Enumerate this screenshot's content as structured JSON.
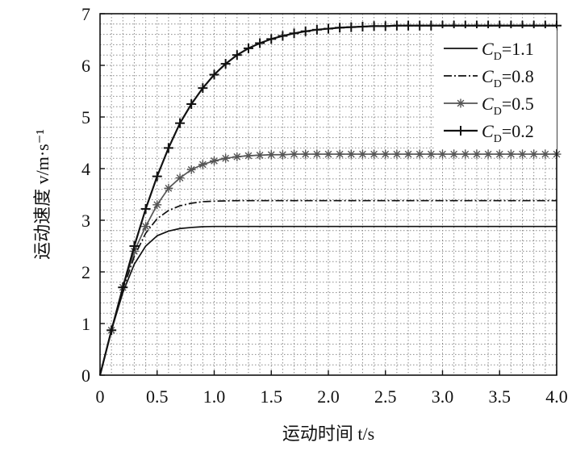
{
  "chart_data": {
    "type": "line",
    "xlabel": "运动时间 t/s",
    "ylabel": "运动速度 v/m·s⁻¹",
    "xlim": [
      0,
      4.0
    ],
    "ylim": [
      0,
      7
    ],
    "x_ticks": [
      "0",
      "0.5",
      "1.0",
      "1.5",
      "2.0",
      "2.5",
      "3.0",
      "3.5",
      "4.0"
    ],
    "y_ticks": [
      "0",
      "1",
      "2",
      "3",
      "4",
      "5",
      "6",
      "7"
    ],
    "grid": true,
    "legend_position": "top-right",
    "series": [
      {
        "name": "C_D=1.1",
        "legend_main": "C",
        "legend_sub": "D",
        "legend_tail": "=1.1",
        "style": "solid",
        "marker": "none",
        "color": "#111111",
        "points": [
          [
            0,
            0
          ],
          [
            0.1,
            0.87
          ],
          [
            0.2,
            1.6
          ],
          [
            0.3,
            2.15
          ],
          [
            0.4,
            2.5
          ],
          [
            0.5,
            2.7
          ],
          [
            0.6,
            2.79
          ],
          [
            0.7,
            2.84
          ],
          [
            0.8,
            2.86
          ],
          [
            0.9,
            2.875
          ],
          [
            1.0,
            2.88
          ],
          [
            1.2,
            2.88
          ],
          [
            1.5,
            2.88
          ],
          [
            2.0,
            2.88
          ],
          [
            2.5,
            2.88
          ],
          [
            3.0,
            2.88
          ],
          [
            3.5,
            2.88
          ],
          [
            4.0,
            2.88
          ]
        ]
      },
      {
        "name": "C_D=0.8",
        "legend_main": "C",
        "legend_sub": "D",
        "legend_tail": "=0.8",
        "style": "dashdot",
        "marker": "none",
        "color": "#111111",
        "points": [
          [
            0,
            0
          ],
          [
            0.1,
            0.87
          ],
          [
            0.2,
            1.65
          ],
          [
            0.3,
            2.3
          ],
          [
            0.4,
            2.75
          ],
          [
            0.5,
            3.03
          ],
          [
            0.6,
            3.19
          ],
          [
            0.7,
            3.28
          ],
          [
            0.8,
            3.33
          ],
          [
            0.9,
            3.36
          ],
          [
            1.0,
            3.37
          ],
          [
            1.2,
            3.38
          ],
          [
            1.5,
            3.38
          ],
          [
            2.0,
            3.38
          ],
          [
            2.5,
            3.38
          ],
          [
            3.0,
            3.38
          ],
          [
            3.5,
            3.38
          ],
          [
            4.0,
            3.38
          ]
        ]
      },
      {
        "name": "C_D=0.5",
        "legend_main": "C",
        "legend_sub": "D",
        "legend_tail": "=0.5",
        "style": "solid",
        "marker": "asterisk",
        "color": "#555555",
        "points": [
          [
            0,
            0
          ],
          [
            0.1,
            0.87
          ],
          [
            0.2,
            1.7
          ],
          [
            0.3,
            2.4
          ],
          [
            0.4,
            2.88
          ],
          [
            0.5,
            3.3
          ],
          [
            0.6,
            3.62
          ],
          [
            0.7,
            3.82
          ],
          [
            0.8,
            3.98
          ],
          [
            0.9,
            4.08
          ],
          [
            1.0,
            4.15
          ],
          [
            1.1,
            4.2
          ],
          [
            1.2,
            4.23
          ],
          [
            1.3,
            4.25
          ],
          [
            1.4,
            4.26
          ],
          [
            1.5,
            4.27
          ],
          [
            1.6,
            4.27
          ],
          [
            1.7,
            4.28
          ],
          [
            1.8,
            4.28
          ],
          [
            1.9,
            4.28
          ],
          [
            2.0,
            4.28
          ],
          [
            2.1,
            4.28
          ],
          [
            2.2,
            4.28
          ],
          [
            2.3,
            4.28
          ],
          [
            2.4,
            4.28
          ],
          [
            2.5,
            4.28
          ],
          [
            2.6,
            4.28
          ],
          [
            2.7,
            4.28
          ],
          [
            2.8,
            4.28
          ],
          [
            2.9,
            4.28
          ],
          [
            3.0,
            4.28
          ],
          [
            3.1,
            4.28
          ],
          [
            3.2,
            4.28
          ],
          [
            3.3,
            4.28
          ],
          [
            3.4,
            4.28
          ],
          [
            3.5,
            4.28
          ],
          [
            3.6,
            4.28
          ],
          [
            3.7,
            4.28
          ],
          [
            3.8,
            4.28
          ],
          [
            3.9,
            4.28
          ],
          [
            4.0,
            4.28
          ]
        ]
      },
      {
        "name": "C_D=0.2",
        "legend_main": "C",
        "legend_sub": "D",
        "legend_tail": "=0.2",
        "style": "solid",
        "marker": "plus",
        "color": "#111111",
        "points": [
          [
            0,
            0
          ],
          [
            0.1,
            0.87
          ],
          [
            0.2,
            1.7
          ],
          [
            0.3,
            2.5
          ],
          [
            0.4,
            3.22
          ],
          [
            0.5,
            3.85
          ],
          [
            0.6,
            4.4
          ],
          [
            0.7,
            4.88
          ],
          [
            0.8,
            5.25
          ],
          [
            0.9,
            5.56
          ],
          [
            1.0,
            5.82
          ],
          [
            1.1,
            6.03
          ],
          [
            1.2,
            6.2
          ],
          [
            1.3,
            6.33
          ],
          [
            1.4,
            6.43
          ],
          [
            1.5,
            6.51
          ],
          [
            1.6,
            6.57
          ],
          [
            1.7,
            6.62
          ],
          [
            1.8,
            6.66
          ],
          [
            1.9,
            6.69
          ],
          [
            2.0,
            6.71
          ],
          [
            2.1,
            6.73
          ],
          [
            2.2,
            6.74
          ],
          [
            2.3,
            6.75
          ],
          [
            2.4,
            6.76
          ],
          [
            2.5,
            6.76
          ],
          [
            2.6,
            6.77
          ],
          [
            2.7,
            6.77
          ],
          [
            2.8,
            6.77
          ],
          [
            2.9,
            6.77
          ],
          [
            3.0,
            6.77
          ],
          [
            3.1,
            6.77
          ],
          [
            3.2,
            6.77
          ],
          [
            3.3,
            6.77
          ],
          [
            3.4,
            6.77
          ],
          [
            3.5,
            6.77
          ],
          [
            3.6,
            6.77
          ],
          [
            3.7,
            6.77
          ],
          [
            3.8,
            6.77
          ],
          [
            3.9,
            6.77
          ],
          [
            4.0,
            6.77
          ]
        ]
      }
    ]
  }
}
